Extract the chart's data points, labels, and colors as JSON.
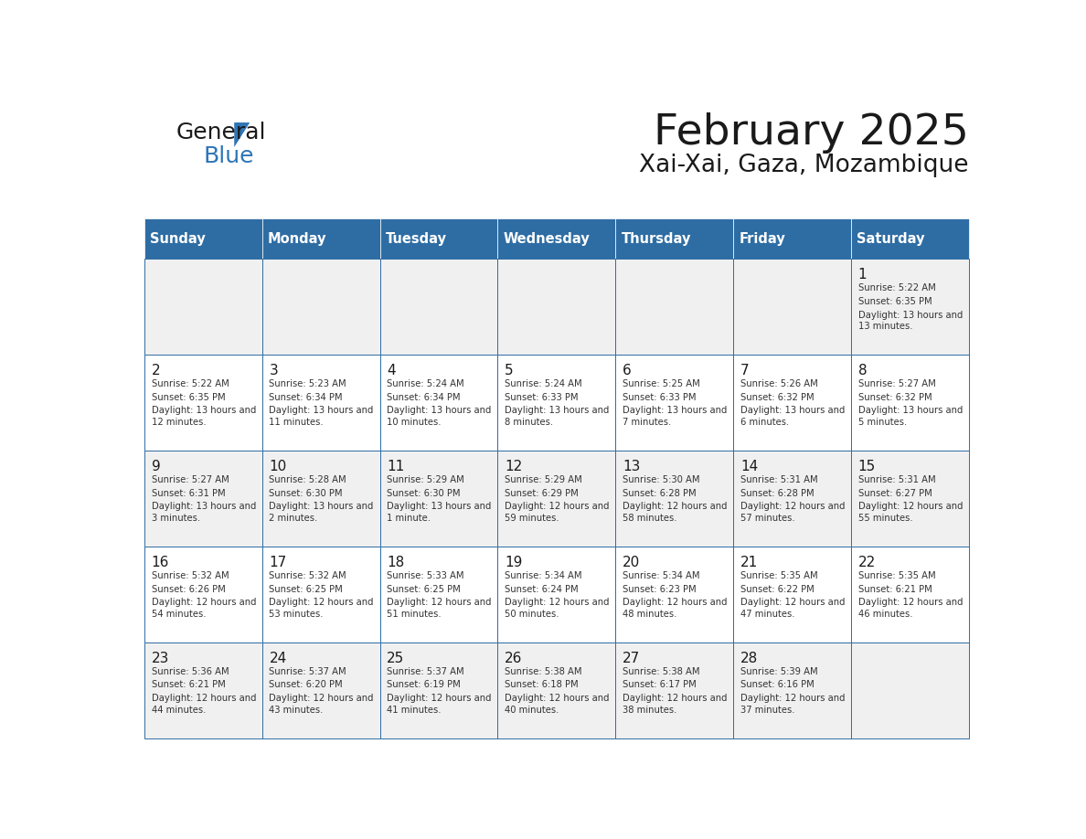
{
  "title": "February 2025",
  "subtitle": "Xai-Xai, Gaza, Mozambique",
  "header_bg_color": "#2E6DA4",
  "header_text_color": "#FFFFFF",
  "border_color": "#2E6DA4",
  "day_names": [
    "Sunday",
    "Monday",
    "Tuesday",
    "Wednesday",
    "Thursday",
    "Friday",
    "Saturday"
  ],
  "title_color": "#1a1a1a",
  "subtitle_color": "#1a1a1a",
  "days": [
    {
      "day": 1,
      "col": 6,
      "row": 0,
      "sunrise": "5:22 AM",
      "sunset": "6:35 PM",
      "daylight": "13 hours and 13 minutes"
    },
    {
      "day": 2,
      "col": 0,
      "row": 1,
      "sunrise": "5:22 AM",
      "sunset": "6:35 PM",
      "daylight": "13 hours and 12 minutes"
    },
    {
      "day": 3,
      "col": 1,
      "row": 1,
      "sunrise": "5:23 AM",
      "sunset": "6:34 PM",
      "daylight": "13 hours and 11 minutes"
    },
    {
      "day": 4,
      "col": 2,
      "row": 1,
      "sunrise": "5:24 AM",
      "sunset": "6:34 PM",
      "daylight": "13 hours and 10 minutes"
    },
    {
      "day": 5,
      "col": 3,
      "row": 1,
      "sunrise": "5:24 AM",
      "sunset": "6:33 PM",
      "daylight": "13 hours and 8 minutes"
    },
    {
      "day": 6,
      "col": 4,
      "row": 1,
      "sunrise": "5:25 AM",
      "sunset": "6:33 PM",
      "daylight": "13 hours and 7 minutes"
    },
    {
      "day": 7,
      "col": 5,
      "row": 1,
      "sunrise": "5:26 AM",
      "sunset": "6:32 PM",
      "daylight": "13 hours and 6 minutes"
    },
    {
      "day": 8,
      "col": 6,
      "row": 1,
      "sunrise": "5:27 AM",
      "sunset": "6:32 PM",
      "daylight": "13 hours and 5 minutes"
    },
    {
      "day": 9,
      "col": 0,
      "row": 2,
      "sunrise": "5:27 AM",
      "sunset": "6:31 PM",
      "daylight": "13 hours and 3 minutes"
    },
    {
      "day": 10,
      "col": 1,
      "row": 2,
      "sunrise": "5:28 AM",
      "sunset": "6:30 PM",
      "daylight": "13 hours and 2 minutes"
    },
    {
      "day": 11,
      "col": 2,
      "row": 2,
      "sunrise": "5:29 AM",
      "sunset": "6:30 PM",
      "daylight": "13 hours and 1 minute"
    },
    {
      "day": 12,
      "col": 3,
      "row": 2,
      "sunrise": "5:29 AM",
      "sunset": "6:29 PM",
      "daylight": "12 hours and 59 minutes"
    },
    {
      "day": 13,
      "col": 4,
      "row": 2,
      "sunrise": "5:30 AM",
      "sunset": "6:28 PM",
      "daylight": "12 hours and 58 minutes"
    },
    {
      "day": 14,
      "col": 5,
      "row": 2,
      "sunrise": "5:31 AM",
      "sunset": "6:28 PM",
      "daylight": "12 hours and 57 minutes"
    },
    {
      "day": 15,
      "col": 6,
      "row": 2,
      "sunrise": "5:31 AM",
      "sunset": "6:27 PM",
      "daylight": "12 hours and 55 minutes"
    },
    {
      "day": 16,
      "col": 0,
      "row": 3,
      "sunrise": "5:32 AM",
      "sunset": "6:26 PM",
      "daylight": "12 hours and 54 minutes"
    },
    {
      "day": 17,
      "col": 1,
      "row": 3,
      "sunrise": "5:32 AM",
      "sunset": "6:25 PM",
      "daylight": "12 hours and 53 minutes"
    },
    {
      "day": 18,
      "col": 2,
      "row": 3,
      "sunrise": "5:33 AM",
      "sunset": "6:25 PM",
      "daylight": "12 hours and 51 minutes"
    },
    {
      "day": 19,
      "col": 3,
      "row": 3,
      "sunrise": "5:34 AM",
      "sunset": "6:24 PM",
      "daylight": "12 hours and 50 minutes"
    },
    {
      "day": 20,
      "col": 4,
      "row": 3,
      "sunrise": "5:34 AM",
      "sunset": "6:23 PM",
      "daylight": "12 hours and 48 minutes"
    },
    {
      "day": 21,
      "col": 5,
      "row": 3,
      "sunrise": "5:35 AM",
      "sunset": "6:22 PM",
      "daylight": "12 hours and 47 minutes"
    },
    {
      "day": 22,
      "col": 6,
      "row": 3,
      "sunrise": "5:35 AM",
      "sunset": "6:21 PM",
      "daylight": "12 hours and 46 minutes"
    },
    {
      "day": 23,
      "col": 0,
      "row": 4,
      "sunrise": "5:36 AM",
      "sunset": "6:21 PM",
      "daylight": "12 hours and 44 minutes"
    },
    {
      "day": 24,
      "col": 1,
      "row": 4,
      "sunrise": "5:37 AM",
      "sunset": "6:20 PM",
      "daylight": "12 hours and 43 minutes"
    },
    {
      "day": 25,
      "col": 2,
      "row": 4,
      "sunrise": "5:37 AM",
      "sunset": "6:19 PM",
      "daylight": "12 hours and 41 minutes"
    },
    {
      "day": 26,
      "col": 3,
      "row": 4,
      "sunrise": "5:38 AM",
      "sunset": "6:18 PM",
      "daylight": "12 hours and 40 minutes"
    },
    {
      "day": 27,
      "col": 4,
      "row": 4,
      "sunrise": "5:38 AM",
      "sunset": "6:17 PM",
      "daylight": "12 hours and 38 minutes"
    },
    {
      "day": 28,
      "col": 5,
      "row": 4,
      "sunrise": "5:39 AM",
      "sunset": "6:16 PM",
      "daylight": "12 hours and 37 minutes"
    }
  ],
  "num_rows": 5,
  "num_cols": 7,
  "logo_general_color": "#1a1a1a",
  "logo_blue_color": "#2E75B6",
  "logo_triangle_color": "#2E75B6"
}
